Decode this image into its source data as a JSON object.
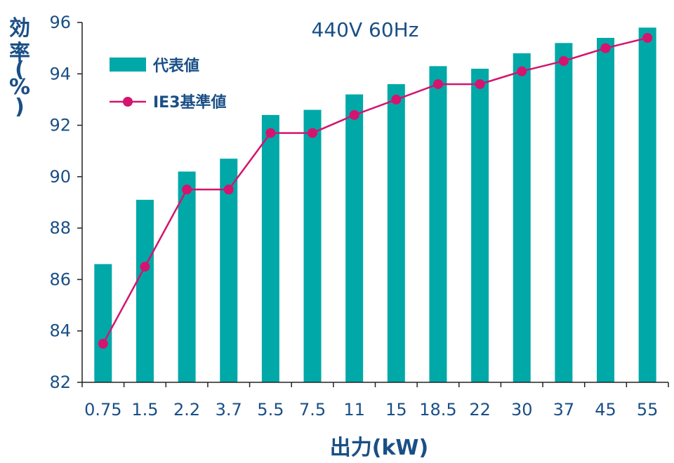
{
  "chart_data": {
    "type": "bar",
    "title": "440V 60Hz",
    "xlabel": "出力(kW)",
    "ylabel_chars": [
      "効",
      "率",
      "(",
      "%",
      ")"
    ],
    "ylim": [
      82,
      96
    ],
    "yticks": [
      "82",
      "84",
      "86",
      "88",
      "90",
      "92",
      "94",
      "96"
    ],
    "categories": [
      "0.75",
      "1.5",
      "2.2",
      "3.7",
      "5.5",
      "7.5",
      "11",
      "15",
      "18.5",
      "22",
      "30",
      "37",
      "45",
      "55"
    ],
    "series": [
      {
        "name": "代表値",
        "type": "bar",
        "color": "#00a8a8",
        "values": [
          86.6,
          89.1,
          90.2,
          90.7,
          92.4,
          92.6,
          93.2,
          93.6,
          94.3,
          94.2,
          94.8,
          95.2,
          95.4,
          95.8
        ]
      },
      {
        "name": "IE3基準値",
        "type": "line",
        "color": "#d4146e",
        "values": [
          83.5,
          86.5,
          89.5,
          89.5,
          91.7,
          91.7,
          92.4,
          93.0,
          93.6,
          93.6,
          94.1,
          94.5,
          95.0,
          95.4
        ]
      }
    ],
    "legend_position": "top-left",
    "grid": false
  }
}
